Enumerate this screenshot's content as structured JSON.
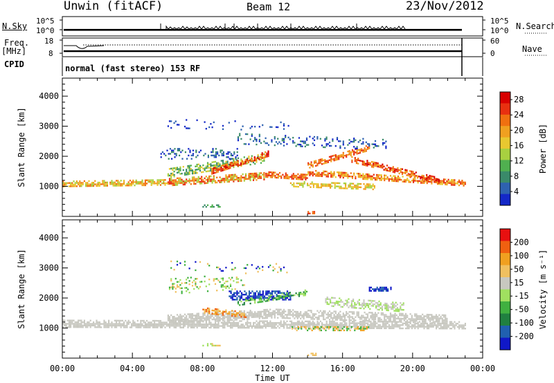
{
  "header": {
    "station": "Unwin (fitACF)",
    "beam": "Beam 12",
    "date": "23/Nov/2012"
  },
  "panels": {
    "nsky": {
      "label": "N.Sky",
      "ticks": [
        "10^5",
        "10^0"
      ],
      "right_ticks": [
        "10^5",
        "10^0"
      ],
      "right_label": "N.Search"
    },
    "freq": {
      "label": "Freq.",
      "unit": "[MHz]",
      "ticks": [
        "18",
        "8"
      ],
      "right_ticks": [
        "60",
        "0"
      ],
      "right_label": "Nave"
    },
    "cpid": {
      "label": "CPID",
      "text": "normal (fast stereo) 153 RF"
    }
  },
  "chart_data": [
    {
      "type": "heatmap",
      "name": "power",
      "x_axis": {
        "ticks": [
          "00:00",
          "04:00",
          "08:00",
          "12:00",
          "16:00",
          "20:00",
          "00:00"
        ],
        "range_hours": [
          0,
          24
        ]
      },
      "y_axis": {
        "label": "Slant Range [km]",
        "ticks": [
          1000,
          2000,
          3000,
          4000
        ],
        "range": [
          0,
          4600
        ]
      },
      "colorbar": {
        "label": "Power [dB]",
        "ticks": [
          "4",
          "8",
          "12",
          "16",
          "20",
          "24",
          "28"
        ],
        "colors": [
          "#1428c8",
          "#2e62b0",
          "#3a8a6a",
          "#50b050",
          "#a8d040",
          "#e8c830",
          "#f0a020",
          "#f07010",
          "#e83010",
          "#d80000"
        ]
      },
      "scatter_bands": [
        {
          "from_h": 0.0,
          "to_h": 6.0,
          "from_km": 1100,
          "to_km": 1150,
          "width_km": 180,
          "density": 0.95,
          "levels": [
            4,
            5,
            6,
            7
          ]
        },
        {
          "from_h": 6.0,
          "to_h": 11.5,
          "from_km": 1150,
          "to_km": 1350,
          "width_km": 250,
          "density": 0.9,
          "levels": [
            4,
            6,
            7,
            8
          ]
        },
        {
          "from_h": 11.5,
          "to_h": 14.0,
          "from_km": 1400,
          "to_km": 1300,
          "width_km": 220,
          "density": 0.9,
          "levels": [
            6,
            7,
            8
          ]
        },
        {
          "from_h": 14.0,
          "to_h": 23.0,
          "from_km": 1450,
          "to_km": 1100,
          "width_km": 220,
          "density": 0.9,
          "levels": [
            5,
            6,
            7,
            8
          ]
        },
        {
          "from_h": 6.0,
          "to_h": 11.5,
          "from_km": 1450,
          "to_km": 1950,
          "width_km": 300,
          "density": 0.7,
          "levels": [
            2,
            3,
            4,
            5
          ]
        },
        {
          "from_h": 8.5,
          "to_h": 11.8,
          "from_km": 1500,
          "to_km": 2100,
          "width_km": 220,
          "density": 0.85,
          "levels": [
            6,
            7,
            8,
            9
          ]
        },
        {
          "from_h": 14.0,
          "to_h": 17.5,
          "from_km": 1700,
          "to_km": 2300,
          "width_km": 200,
          "density": 0.8,
          "levels": [
            6,
            7,
            8
          ]
        },
        {
          "from_h": 16.5,
          "to_h": 21.5,
          "from_km": 1900,
          "to_km": 1200,
          "width_km": 200,
          "density": 0.85,
          "levels": [
            6,
            7,
            8,
            9
          ]
        },
        {
          "from_h": 13.0,
          "to_h": 17.8,
          "from_km": 1100,
          "to_km": 1000,
          "width_km": 180,
          "density": 0.8,
          "levels": [
            4,
            5,
            6
          ]
        },
        {
          "from_h": 5.6,
          "to_h": 10.0,
          "from_km": 2100,
          "to_km": 2100,
          "width_km": 350,
          "density": 0.35,
          "levels": [
            0,
            1,
            2
          ]
        },
        {
          "from_h": 10.0,
          "to_h": 18.5,
          "from_km": 2600,
          "to_km": 2400,
          "width_km": 350,
          "density": 0.3,
          "levels": [
            0,
            1,
            2
          ]
        },
        {
          "from_h": 6.0,
          "to_h": 13.0,
          "from_km": 3100,
          "to_km": 3000,
          "width_km": 300,
          "density": 0.15,
          "levels": [
            0,
            1
          ]
        },
        {
          "from_h": 8.0,
          "to_h": 9.0,
          "from_km": 350,
          "to_km": 350,
          "width_km": 100,
          "density": 0.6,
          "levels": [
            2,
            3
          ]
        },
        {
          "from_h": 14.0,
          "to_h": 14.5,
          "from_km": 150,
          "to_km": 150,
          "width_km": 60,
          "density": 0.9,
          "levels": [
            7,
            8
          ]
        }
      ]
    },
    {
      "type": "heatmap",
      "name": "velocity",
      "x_axis": {
        "ticks": [
          "00:00",
          "04:00",
          "08:00",
          "12:00",
          "16:00",
          "20:00",
          "00:00"
        ],
        "label": "Time UT",
        "range_hours": [
          0,
          24
        ]
      },
      "y_axis": {
        "label": "Slant Range [km]",
        "ticks": [
          1000,
          2000,
          3000,
          4000
        ],
        "range": [
          0,
          4600
        ]
      },
      "colorbar": {
        "label": "Velocity [m s⁻¹]",
        "ticks": [
          "200",
          "100",
          "50",
          "15",
          "-15",
          "-50",
          "-100",
          "-200"
        ],
        "colors": [
          "#1018c8",
          "#2060b0",
          "#208040",
          "#40b040",
          "#a0e060",
          "#c8c8c0",
          "#f0c060",
          "#f0a020",
          "#f06010",
          "#e81010"
        ]
      },
      "scatter_bands": [
        {
          "from_h": 0.0,
          "to_h": 23.0,
          "from_km": 1150,
          "to_km": 1100,
          "width_km": 260,
          "density": 0.95,
          "levels": [
            5
          ]
        },
        {
          "from_h": 6.0,
          "to_h": 12.0,
          "from_km": 1300,
          "to_km": 1500,
          "width_km": 300,
          "density": 0.9,
          "levels": [
            5
          ]
        },
        {
          "from_h": 12.0,
          "to_h": 22.0,
          "from_km": 1500,
          "to_km": 1300,
          "width_km": 300,
          "density": 0.85,
          "levels": [
            5
          ]
        },
        {
          "from_h": 15.0,
          "to_h": 19.5,
          "from_km": 1900,
          "to_km": 1700,
          "width_km": 300,
          "density": 0.7,
          "levels": [
            4,
            5
          ]
        },
        {
          "from_h": 8.0,
          "to_h": 10.5,
          "from_km": 1600,
          "to_km": 1450,
          "width_km": 200,
          "density": 0.75,
          "levels": [
            6,
            7,
            8
          ]
        },
        {
          "from_h": 9.5,
          "to_h": 13.0,
          "from_km": 2100,
          "to_km": 2100,
          "width_km": 300,
          "density": 0.8,
          "levels": [
            0,
            1
          ]
        },
        {
          "from_h": 10.0,
          "to_h": 14.0,
          "from_km": 1850,
          "to_km": 2200,
          "width_km": 200,
          "density": 0.55,
          "levels": [
            3,
            4,
            2
          ]
        },
        {
          "from_h": 17.5,
          "to_h": 18.8,
          "from_km": 2300,
          "to_km": 2300,
          "width_km": 150,
          "density": 0.9,
          "levels": [
            0,
            1
          ]
        },
        {
          "from_h": 13.0,
          "to_h": 17.5,
          "from_km": 1000,
          "to_km": 1000,
          "width_km": 120,
          "density": 0.6,
          "levels": [
            3,
            6,
            7
          ]
        },
        {
          "from_h": 6.0,
          "to_h": 10.5,
          "from_km": 2400,
          "to_km": 2600,
          "width_km": 500,
          "density": 0.25,
          "levels": [
            6,
            3,
            4
          ]
        },
        {
          "from_h": 6.0,
          "to_h": 13.0,
          "from_km": 3100,
          "to_km": 3000,
          "width_km": 300,
          "density": 0.12,
          "levels": [
            0,
            3,
            6
          ]
        },
        {
          "from_h": 8.0,
          "to_h": 9.0,
          "from_km": 450,
          "to_km": 450,
          "width_km": 100,
          "density": 0.5,
          "levels": [
            6,
            4
          ]
        },
        {
          "from_h": 14.0,
          "to_h": 14.5,
          "from_km": 150,
          "to_km": 150,
          "width_km": 60,
          "density": 0.9,
          "levels": [
            6
          ]
        }
      ]
    }
  ]
}
